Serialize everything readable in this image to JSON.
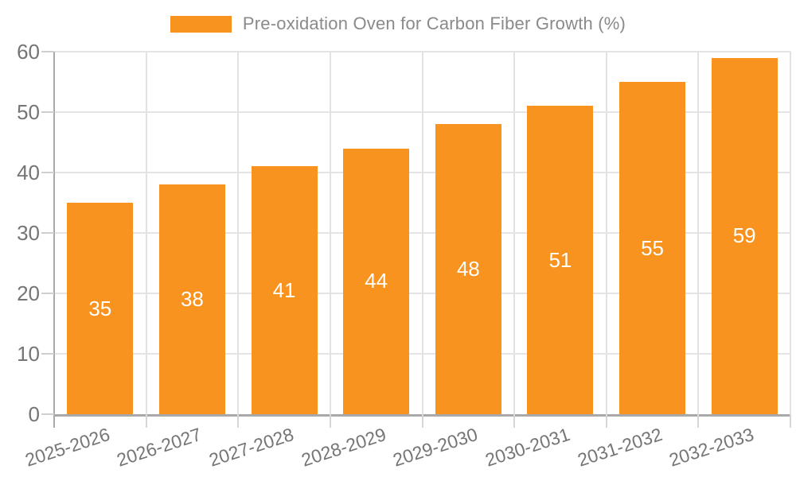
{
  "chart_data": {
    "type": "bar",
    "title": "",
    "legend": "Pre-oxidation Oven for Carbon Fiber Growth (%)",
    "categories": [
      "2025-2026",
      "2026-2027",
      "2027-2028",
      "2028-2029",
      "2029-2030",
      "2030-2031",
      "2031-2032",
      "2032-2033"
    ],
    "values": [
      35,
      38,
      41,
      44,
      48,
      51,
      55,
      59
    ],
    "xlabel": "",
    "ylabel": "",
    "ylim": [
      0,
      60
    ],
    "ytick_step": 10,
    "grid": "on",
    "legend_position": "top-center",
    "bar_color": "#F7931E",
    "value_label_color": "#FFFFFF"
  }
}
